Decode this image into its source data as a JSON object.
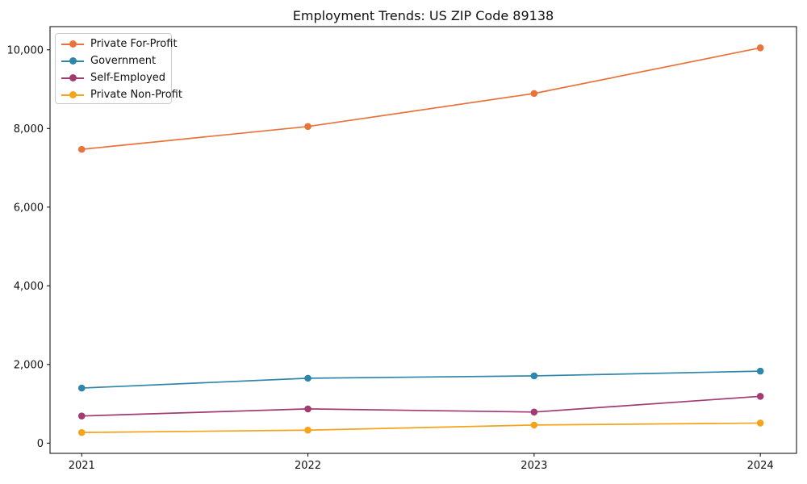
{
  "title": "Employment Trends: US ZIP Code 89138",
  "chart_data": {
    "type": "line",
    "x": [
      2021,
      2022,
      2023,
      2024
    ],
    "x_labels": [
      "2021",
      "2022",
      "2023",
      "2024"
    ],
    "series": [
      {
        "name": "Private For-Profit",
        "color": "#E8743B",
        "values": [
          7470,
          8050,
          8890,
          10050
        ]
      },
      {
        "name": "Government",
        "color": "#2E86AB",
        "values": [
          1400,
          1650,
          1710,
          1830
        ]
      },
      {
        "name": "Self-Employed",
        "color": "#A23B72",
        "values": [
          690,
          870,
          790,
          1190
        ]
      },
      {
        "name": "Private Non-Profit",
        "color": "#F5A31A",
        "values": [
          270,
          330,
          460,
          510
        ]
      }
    ],
    "yticks": {
      "values": [
        0,
        2000,
        4000,
        6000,
        8000,
        10000
      ],
      "labels": [
        "0",
        "2,000",
        "4,000",
        "6,000",
        "8,000",
        "10,000"
      ]
    },
    "ylim": [
      -260,
      10590
    ],
    "xlim": [
      2020.86,
      2024.16
    ],
    "grid": false,
    "legend_position": "upper-left"
  }
}
